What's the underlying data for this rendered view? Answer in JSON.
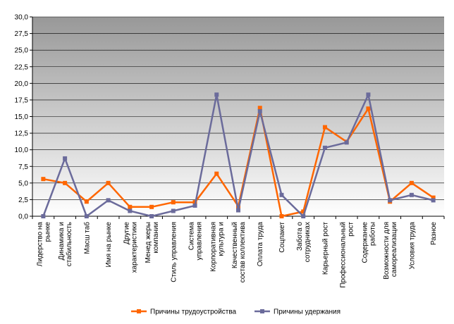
{
  "chart_data": {
    "type": "line",
    "title": "",
    "xlabel": "",
    "ylabel": "",
    "ylim": [
      0,
      30
    ],
    "yticks": [
      "0,0",
      "2,5",
      "5,0",
      "7,5",
      "10,0",
      "12,5",
      "15,0",
      "17,5",
      "20,0",
      "22,5",
      "25,0",
      "27,5",
      "30,0"
    ],
    "grid": true,
    "legend_position": "bottom",
    "categories": [
      [
        "Лидерство на",
        "рынке"
      ],
      [
        "Динамика и",
        "стабильность"
      ],
      [
        "Масш таб"
      ],
      [
        "Имя на рынке"
      ],
      [
        "Другие",
        "характеристики"
      ],
      [
        "Менед жеры",
        "компании"
      ],
      [
        "Стиль управления"
      ],
      [
        "Система",
        "управления"
      ],
      [
        "Корпоративная",
        "культура и"
      ],
      [
        "Качественный",
        "состав коллектива"
      ],
      [
        "Оплата труда"
      ],
      [
        "Соцпакет"
      ],
      [
        "Забота о",
        "сотрудниках"
      ],
      [
        "Карьерный рост"
      ],
      [
        "Профессиональный",
        "рост"
      ],
      [
        "Содержание",
        "работы"
      ],
      [
        "Возможности для",
        "самореализации"
      ],
      [
        "Условия труда"
      ],
      [
        "Разное"
      ]
    ],
    "series": [
      {
        "name": "Причины трудоустройства",
        "color": "#ff6600",
        "values": [
          5.6,
          5.0,
          2.2,
          5.0,
          1.4,
          1.4,
          2.1,
          2.1,
          6.4,
          1.5,
          16.3,
          0.0,
          0.7,
          13.4,
          11.2,
          16.2,
          2.2,
          5.0,
          2.8
        ]
      },
      {
        "name": "Причины удержания",
        "color": "#6b6b9b",
        "values": [
          0.0,
          8.7,
          0.0,
          2.4,
          0.8,
          0.0,
          0.8,
          1.6,
          18.3,
          0.9,
          15.8,
          3.2,
          0.0,
          10.3,
          11.1,
          18.3,
          2.4,
          3.2,
          2.4
        ]
      }
    ],
    "colors": {
      "plot_bg_top": "#989898",
      "plot_bg_bottom": "#ffffff",
      "gridline": "#000000"
    }
  }
}
